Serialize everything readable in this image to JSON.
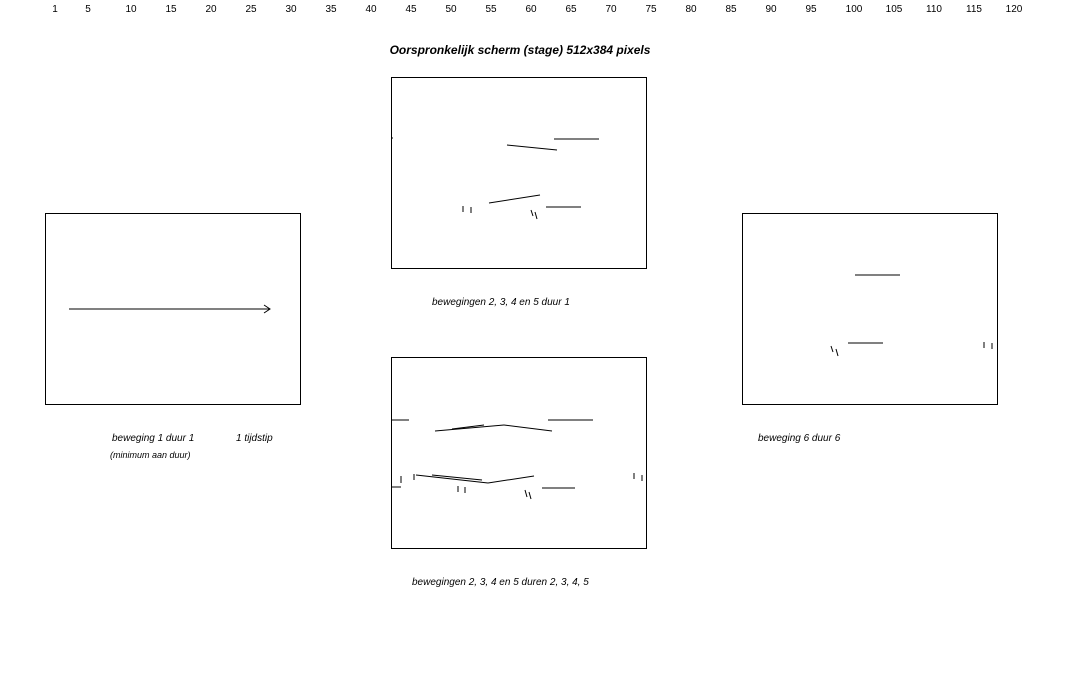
{
  "ruler": {
    "ticks": [
      "1",
      "5",
      "10",
      "15",
      "20",
      "25",
      "30",
      "35",
      "40",
      "45",
      "50",
      "55",
      "60",
      "65",
      "70",
      "75",
      "80",
      "85",
      "90",
      "95",
      "100",
      "105",
      "110",
      "115",
      "120"
    ]
  },
  "title": "Oorspronkelijk scherm (stage) 512x384 pixels",
  "panels": {
    "movement1": {
      "caption": "beweging 1  duur 1",
      "extra": "1 tijdstip",
      "note": "(minimum aan duur)"
    },
    "movements2to5_duration1": {
      "caption": "bewegingen 2, 3, 4 en 5  duur 1"
    },
    "movements2to5_durations": {
      "caption": "bewegingen 2, 3, 4 en 5  duren 2, 3, 4, 5"
    },
    "movement6": {
      "caption": "beweging 6  duur 6"
    }
  }
}
